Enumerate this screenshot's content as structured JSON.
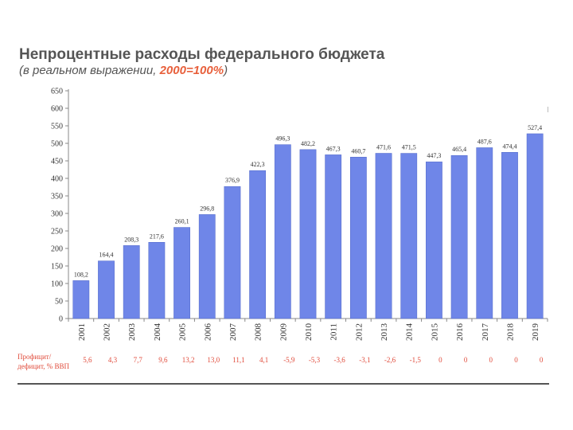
{
  "header": {
    "title": "Непроцентные расходы федерального бюджета",
    "subtitle_prefix": "(в реальном выражении, ",
    "subtitle_highlight": "2000=100%",
    "subtitle_suffix": ")"
  },
  "colors": {
    "bar": "#6f86e8",
    "bar_edge": "#5168c8",
    "title": "#555555",
    "accent": "#e8603c",
    "deficit": "#e04a3a"
  },
  "chart_data": {
    "type": "bar",
    "title": "Непроцентные расходы федерального бюджета",
    "subtitle": "(в реальном выражении, 2000=100%)",
    "categories": [
      "2001",
      "2002",
      "2003",
      "2004",
      "2005",
      "2006",
      "2007",
      "2008",
      "2009",
      "2010",
      "2011",
      "2012",
      "2013",
      "2014",
      "2015",
      "2016",
      "2017",
      "2018",
      "2019"
    ],
    "values": [
      108.2,
      164.4,
      208.3,
      217.6,
      260.1,
      296.8,
      376.9,
      422.3,
      496.3,
      482.2,
      467.3,
      460.7,
      471.6,
      471.5,
      447.3,
      465.4,
      487.6,
      474.4,
      527.4
    ],
    "value_labels": [
      "108,2",
      "164,4",
      "208,3",
      "217,6",
      "260,1",
      "296,8",
      "376,9",
      "422,3",
      "496,3",
      "482,2",
      "467,3",
      "460,7",
      "471,6",
      "471,5",
      "447,3",
      "465,4",
      "487,6",
      "474,4",
      "527,4"
    ],
    "ylim": [
      0,
      650
    ],
    "yticks": [
      0,
      50,
      100,
      150,
      200,
      250,
      300,
      350,
      400,
      450,
      500,
      550,
      600,
      650
    ],
    "grid": false,
    "legend": "none",
    "xlabel": "",
    "ylabel": ""
  },
  "deficit_row": {
    "label": "Профицит/ дефицит, % ВВП",
    "values": [
      "5,6",
      "4,3",
      "7,7",
      "9,6",
      "13,2",
      "13,0",
      "11,1",
      "4,1",
      "-5,9",
      "-5,3",
      "-3,6",
      "-3,1",
      "-2,6",
      "-1,5",
      "0",
      "0",
      "0",
      "0",
      "0"
    ]
  }
}
